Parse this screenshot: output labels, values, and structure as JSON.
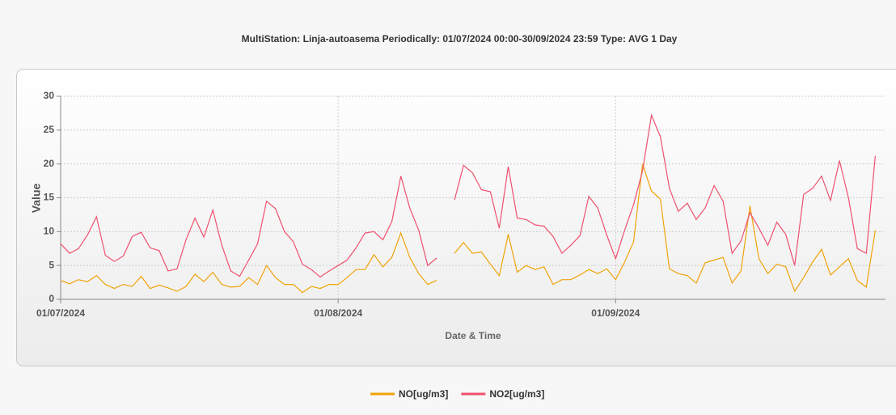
{
  "chart_data": {
    "type": "line",
    "title": "MultiStation: Linja-autoasema Periodically: 01/07/2024 00:00-30/09/2024 23:59  Type: AVG 1 Day",
    "y_label": "Value",
    "x_label": "Date & Time",
    "x": [
      "01/07/2024",
      "02/07/2024",
      "03/07/2024",
      "04/07/2024",
      "05/07/2024",
      "06/07/2024",
      "07/07/2024",
      "08/07/2024",
      "09/07/2024",
      "10/07/2024",
      "11/07/2024",
      "12/07/2024",
      "13/07/2024",
      "14/07/2024",
      "15/07/2024",
      "16/07/2024",
      "17/07/2024",
      "18/07/2024",
      "19/07/2024",
      "20/07/2024",
      "21/07/2024",
      "22/07/2024",
      "23/07/2024",
      "24/07/2024",
      "25/07/2024",
      "26/07/2024",
      "27/07/2024",
      "28/07/2024",
      "29/07/2024",
      "30/07/2024",
      "31/07/2024",
      "01/08/2024",
      "02/08/2024",
      "03/08/2024",
      "04/08/2024",
      "05/08/2024",
      "06/08/2024",
      "07/08/2024",
      "08/08/2024",
      "09/08/2024",
      "10/08/2024",
      "11/08/2024",
      "12/08/2024",
      "13/08/2024",
      "14/08/2024",
      "15/08/2024",
      "16/08/2024",
      "17/08/2024",
      "18/08/2024",
      "19/08/2024",
      "20/08/2024",
      "21/08/2024",
      "22/08/2024",
      "23/08/2024",
      "24/08/2024",
      "25/08/2024",
      "26/08/2024",
      "27/08/2024",
      "28/08/2024",
      "29/08/2024",
      "30/08/2024",
      "31/08/2024",
      "01/09/2024",
      "02/09/2024",
      "03/09/2024",
      "04/09/2024",
      "05/09/2024",
      "06/09/2024",
      "07/09/2024",
      "08/09/2024",
      "09/09/2024",
      "10/09/2024",
      "11/09/2024",
      "12/09/2024",
      "13/09/2024",
      "14/09/2024",
      "15/09/2024",
      "16/09/2024",
      "17/09/2024",
      "18/09/2024",
      "19/09/2024",
      "20/09/2024",
      "21/09/2024",
      "22/09/2024",
      "23/09/2024",
      "24/09/2024",
      "25/09/2024",
      "26/09/2024",
      "27/09/2024",
      "28/09/2024",
      "29/09/2024",
      "30/09/2024"
    ],
    "xticks": [
      "01/07/2024",
      "01/08/2024",
      "01/09/2024"
    ],
    "ylim": [
      0,
      30
    ],
    "yticks": [
      0,
      5,
      10,
      15,
      20,
      25,
      30
    ],
    "grid": true,
    "legend": "bottom",
    "series": [
      {
        "name": "NO[ug/m3]",
        "color": "#f0a30a",
        "values": [
          2.8,
          2.3,
          2.9,
          2.6,
          3.5,
          2.2,
          1.6,
          2.2,
          1.9,
          3.4,
          1.6,
          2.1,
          1.7,
          1.2,
          1.9,
          3.7,
          2.6,
          4.0,
          2.2,
          1.8,
          1.9,
          3.2,
          2.2,
          5.0,
          3.2,
          2.2,
          2.2,
          1.0,
          1.9,
          1.6,
          2.2,
          2.2,
          3.2,
          4.4,
          4.4,
          6.6,
          4.8,
          6.2,
          9.8,
          6.2,
          3.8,
          2.2,
          2.8,
          null,
          6.8,
          8.4,
          6.8,
          7.0,
          5.2,
          3.5,
          9.6,
          4.0,
          5.0,
          4.4,
          4.8,
          2.2,
          2.9,
          2.9,
          3.6,
          4.4,
          3.8,
          4.5,
          2.9,
          5.5,
          8.5,
          20.0,
          16.0,
          14.8,
          4.5,
          3.8,
          3.5,
          2.4,
          5.4,
          5.8,
          6.2,
          2.4,
          4.2,
          13.8,
          6.0,
          3.8,
          5.2,
          4.8,
          1.2,
          3.2,
          5.5,
          7.4,
          3.6,
          4.8,
          6.0,
          2.8,
          1.8,
          10.2
        ]
      },
      {
        "name": "NO2[ug/m3]",
        "color": "#f0506e",
        "values": [
          8.2,
          6.8,
          7.5,
          9.5,
          12.2,
          6.5,
          5.6,
          6.4,
          9.3,
          9.9,
          7.6,
          7.2,
          4.2,
          4.5,
          8.8,
          12.0,
          9.2,
          13.2,
          8.0,
          4.2,
          3.4,
          5.8,
          8.2,
          14.5,
          13.4,
          10.0,
          8.5,
          5.2,
          4.4,
          3.3,
          4.2,
          5.0,
          5.8,
          7.6,
          9.8,
          10.0,
          8.8,
          11.5,
          18.2,
          13.5,
          10.2,
          5.0,
          6.1,
          null,
          14.7,
          19.8,
          18.7,
          16.2,
          15.9,
          10.5,
          19.6,
          12.0,
          11.8,
          11.0,
          10.8,
          9.3,
          6.8,
          8.0,
          9.4,
          15.2,
          13.5,
          9.5,
          6.0,
          10.2,
          14.0,
          19.0,
          27.2,
          24.0,
          16.4,
          13.0,
          14.2,
          11.8,
          13.5,
          16.8,
          14.5,
          6.8,
          8.6,
          12.8,
          10.5,
          8.0,
          11.4,
          9.6,
          5.0,
          15.5,
          16.4,
          18.2,
          14.6,
          20.5,
          15.0,
          7.5,
          6.8,
          21.2
        ]
      }
    ]
  }
}
